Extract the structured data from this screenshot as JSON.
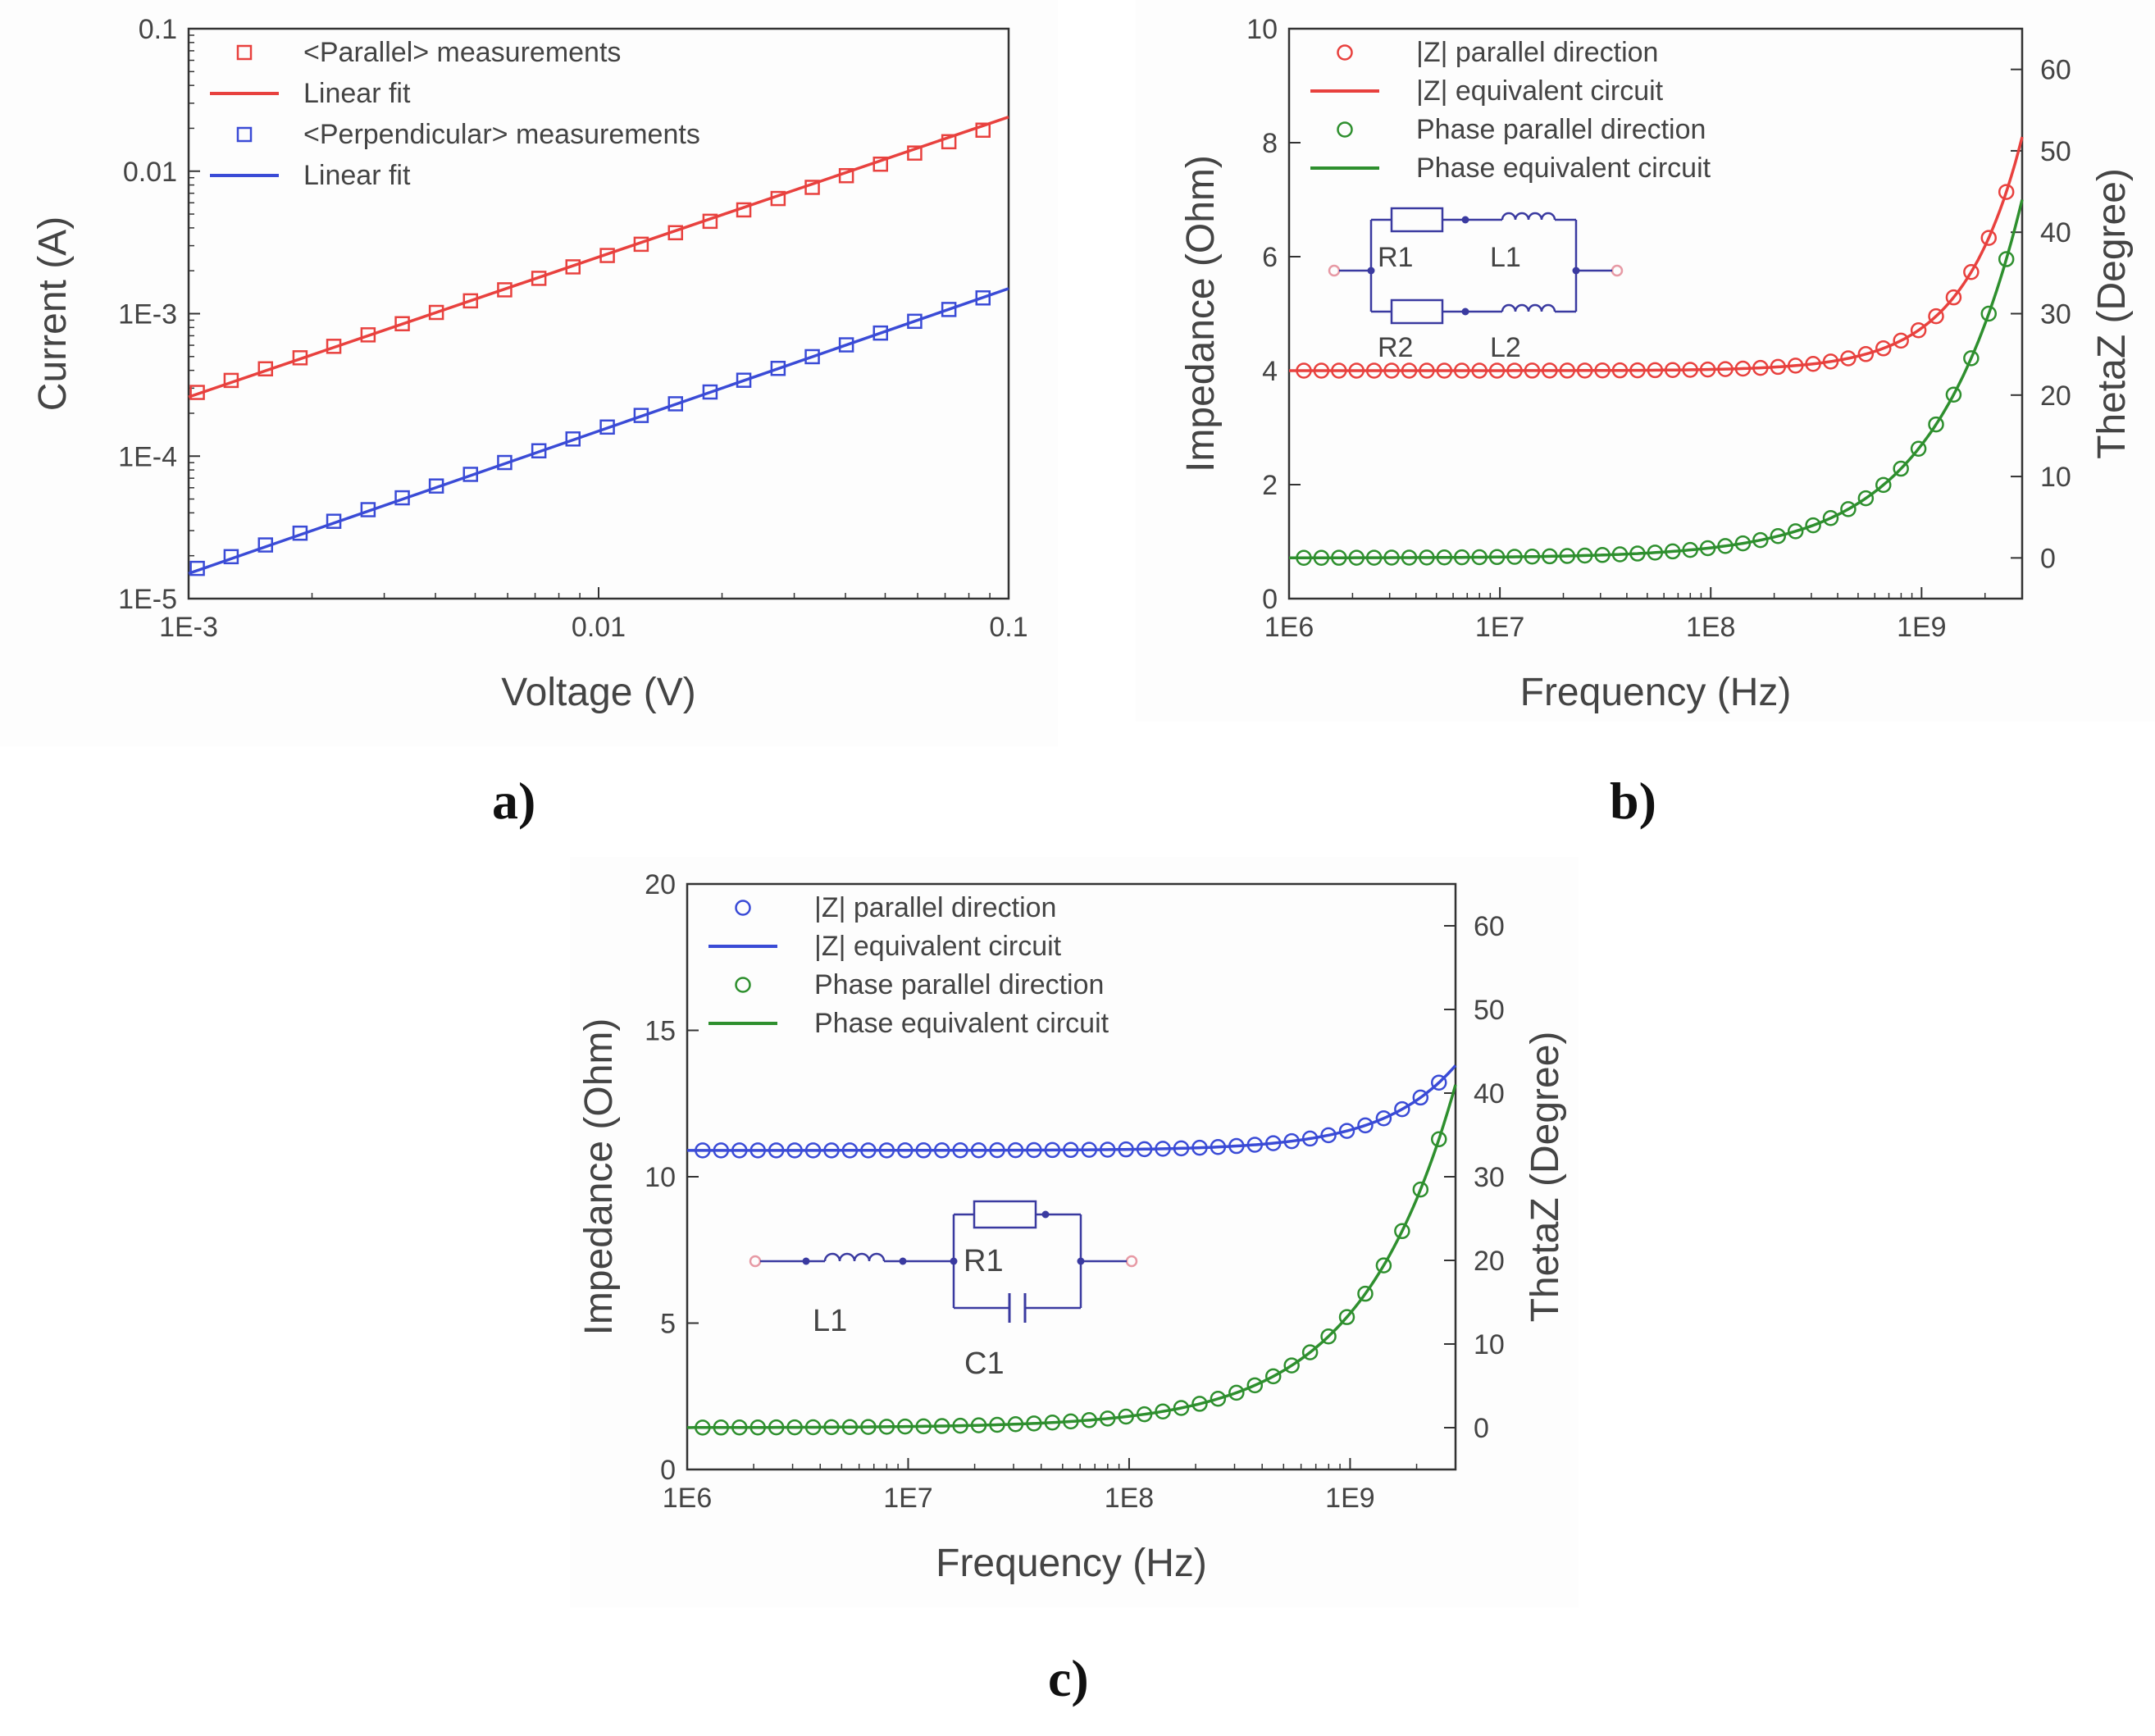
{
  "colors": {
    "red": "#e8413e",
    "blue": "#3a4bd6",
    "green": "#2e8f2e",
    "axis": "#333333",
    "text": "#444444"
  },
  "panel_labels": {
    "a": "a)",
    "b": "b)",
    "c": "c)"
  },
  "chart_data": [
    {
      "id": "a",
      "type": "scatter",
      "xscale": "log",
      "yscale": "log",
      "xlabel": "Voltage (V)",
      "ylabel": "Current (A)",
      "xlim": [
        0.001,
        0.1
      ],
      "ylim": [
        1e-05,
        0.1
      ],
      "xticks": [
        {
          "v": 0.001,
          "label": "1E-3"
        },
        {
          "v": 0.01,
          "label": "0.01"
        },
        {
          "v": 0.1,
          "label": "0.1"
        }
      ],
      "yticks": [
        {
          "v": 1e-05,
          "label": "1E-5"
        },
        {
          "v": 0.0001,
          "label": "1E-4"
        },
        {
          "v": 0.001,
          "label": "1E-3"
        },
        {
          "v": 0.01,
          "label": "0.01"
        },
        {
          "v": 0.1,
          "label": "0.1"
        }
      ],
      "legend": [
        {
          "text": "<Parallel> measurements",
          "kind": "square",
          "color": "red"
        },
        {
          "text": "Linear fit",
          "kind": "line",
          "color": "red"
        },
        {
          "text": "<Perpendicular> measurements",
          "kind": "square",
          "color": "blue"
        },
        {
          "text": "Linear fit",
          "kind": "line",
          "color": "blue"
        }
      ],
      "series": [
        {
          "name": "<Parallel> measurements",
          "marker": "square",
          "color": "red",
          "fit_name": "Linear fit",
          "fit": {
            "x": [
              0.001,
              0.1
            ],
            "y": [
              0.00026,
              0.024
            ]
          },
          "x": [
            0.00105,
            0.00127,
            0.00154,
            0.00187,
            0.00226,
            0.00274,
            0.00332,
            0.00402,
            0.00487,
            0.0059,
            0.00715,
            0.00866,
            0.0105,
            0.0127,
            0.0154,
            0.0187,
            0.0226,
            0.0274,
            0.0332,
            0.0402,
            0.0487,
            0.059,
            0.0715,
            0.0866
          ],
          "y": [
            0.00028,
            0.00034,
            0.00041,
            0.00049,
            0.00059,
            0.00071,
            0.00085,
            0.00102,
            0.00123,
            0.00147,
            0.00177,
            0.00213,
            0.00256,
            0.00307,
            0.0037,
            0.00445,
            0.00535,
            0.00643,
            0.0077,
            0.0093,
            0.0112,
            0.0134,
            0.0161,
            0.0194
          ]
        },
        {
          "name": "<Perpendicular> measurements",
          "marker": "square",
          "color": "blue",
          "fit_name": "Linear fit",
          "fit": {
            "x": [
              0.001,
              0.1
            ],
            "y": [
              1.5e-05,
              0.0015
            ]
          },
          "x": [
            0.00105,
            0.00127,
            0.00154,
            0.00187,
            0.00226,
            0.00274,
            0.00332,
            0.00402,
            0.00487,
            0.0059,
            0.00715,
            0.00866,
            0.0105,
            0.0127,
            0.0154,
            0.0187,
            0.0226,
            0.0274,
            0.0332,
            0.0402,
            0.0487,
            0.059,
            0.0715,
            0.0866
          ],
          "y": [
            1.63e-05,
            1.97e-05,
            2.38e-05,
            2.88e-05,
            3.49e-05,
            4.21e-05,
            5.1e-05,
            6.17e-05,
            7.45e-05,
            9.02e-05,
            0.000109,
            0.000132,
            0.00016,
            0.000193,
            0.000233,
            0.000282,
            0.000341,
            0.000413,
            0.000499,
            0.000604,
            0.000731,
            0.000884,
            0.00107,
            0.00129
          ]
        }
      ]
    },
    {
      "id": "b",
      "type": "scatter",
      "xscale": "log",
      "xlabel": "Frequency (Hz)",
      "ylabel": "Impedance (Ohm)",
      "y2label": "ThetaZ (Degree)",
      "xlim": [
        1000000,
        3000000000
      ],
      "ylim": [
        0,
        10
      ],
      "y2lim": [
        -5,
        65
      ],
      "xticks": [
        {
          "v": 1000000,
          "label": "1E6"
        },
        {
          "v": 10000000,
          "label": "1E7"
        },
        {
          "v": 100000000,
          "label": "1E8"
        },
        {
          "v": 1000000000,
          "label": "1E9"
        }
      ],
      "yticks": [
        {
          "v": 0,
          "label": "0"
        },
        {
          "v": 2,
          "label": "2"
        },
        {
          "v": 4,
          "label": "4"
        },
        {
          "v": 6,
          "label": "6"
        },
        {
          "v": 8,
          "label": "8"
        },
        {
          "v": 10,
          "label": "10"
        }
      ],
      "y2ticks": [
        {
          "v": 0,
          "label": "0"
        },
        {
          "v": 10,
          "label": "10"
        },
        {
          "v": 20,
          "label": "20"
        },
        {
          "v": 30,
          "label": "30"
        },
        {
          "v": 40,
          "label": "40"
        },
        {
          "v": 50,
          "label": "50"
        },
        {
          "v": 60,
          "label": "60"
        }
      ],
      "legend": [
        {
          "text": "|Z| parallel direction",
          "kind": "circle",
          "color": "red"
        },
        {
          "text": "|Z| equivalent circuit",
          "kind": "line",
          "color": "red"
        },
        {
          "text": "Phase parallel direction",
          "kind": "circle",
          "color": "green"
        },
        {
          "text": "Phase equivalent circuit",
          "kind": "line",
          "color": "green"
        }
      ],
      "circuit": {
        "kind": "two-branch",
        "labels": [
          "R1",
          "L1",
          "R2",
          "L2"
        ]
      },
      "series": [
        {
          "name": "|Z| parallel direction",
          "axis": "left",
          "color": "red",
          "fit_name": "|Z| equivalent circuit",
          "model": {
            "kind": "mag",
            "base": 4.0,
            "amp": 4.1,
            "fc": 3000000000,
            "p": 1.55
          }
        },
        {
          "name": "Phase parallel direction",
          "axis": "right",
          "color": "green",
          "fit_name": "Phase equivalent circuit",
          "model": {
            "kind": "phase",
            "base": 0,
            "amp": 44,
            "fc": 3000000000,
            "p": 1.05
          }
        }
      ]
    },
    {
      "id": "c",
      "type": "scatter",
      "xscale": "log",
      "xlabel": "Frequency (Hz)",
      "ylabel": "Impedance (Ohm)",
      "y2label": "ThetaZ (Degree)",
      "xlim": [
        1000000,
        3000000000
      ],
      "ylim": [
        0,
        20
      ],
      "y2lim": [
        -5,
        65
      ],
      "xticks": [
        {
          "v": 1000000,
          "label": "1E6"
        },
        {
          "v": 10000000,
          "label": "1E7"
        },
        {
          "v": 100000000,
          "label": "1E8"
        },
        {
          "v": 1000000000,
          "label": "1E9"
        }
      ],
      "yticks": [
        {
          "v": 0,
          "label": "0"
        },
        {
          "v": 5,
          "label": "5"
        },
        {
          "v": 10,
          "label": "10"
        },
        {
          "v": 15,
          "label": "15"
        },
        {
          "v": 20,
          "label": "20"
        }
      ],
      "y2ticks": [
        {
          "v": 0,
          "label": "0"
        },
        {
          "v": 10,
          "label": "10"
        },
        {
          "v": 20,
          "label": "20"
        },
        {
          "v": 30,
          "label": "30"
        },
        {
          "v": 40,
          "label": "40"
        },
        {
          "v": 50,
          "label": "50"
        },
        {
          "v": 60,
          "label": "60"
        }
      ],
      "legend": [
        {
          "text": "|Z| parallel direction",
          "kind": "circle",
          "color": "blue"
        },
        {
          "text": "|Z| equivalent circuit",
          "kind": "line",
          "color": "blue"
        },
        {
          "text": "Phase parallel direction",
          "kind": "circle",
          "color": "green"
        },
        {
          "text": "Phase equivalent circuit",
          "kind": "line",
          "color": "green"
        }
      ],
      "circuit": {
        "kind": "series-rc",
        "labels": [
          "R1",
          "L1",
          "C1"
        ]
      },
      "series": [
        {
          "name": "|Z| parallel direction",
          "axis": "left",
          "color": "blue",
          "fit_name": "|Z| equivalent circuit",
          "model": {
            "kind": "mag",
            "base": 10.9,
            "amp": 2.9,
            "fc": 3000000000,
            "p": 1.3
          }
        },
        {
          "name": "Phase parallel direction",
          "axis": "right",
          "color": "green",
          "fit_name": "Phase equivalent circuit",
          "model": {
            "kind": "phase",
            "base": 0,
            "amp": 41,
            "fc": 3000000000,
            "p": 1.0
          }
        }
      ]
    }
  ]
}
